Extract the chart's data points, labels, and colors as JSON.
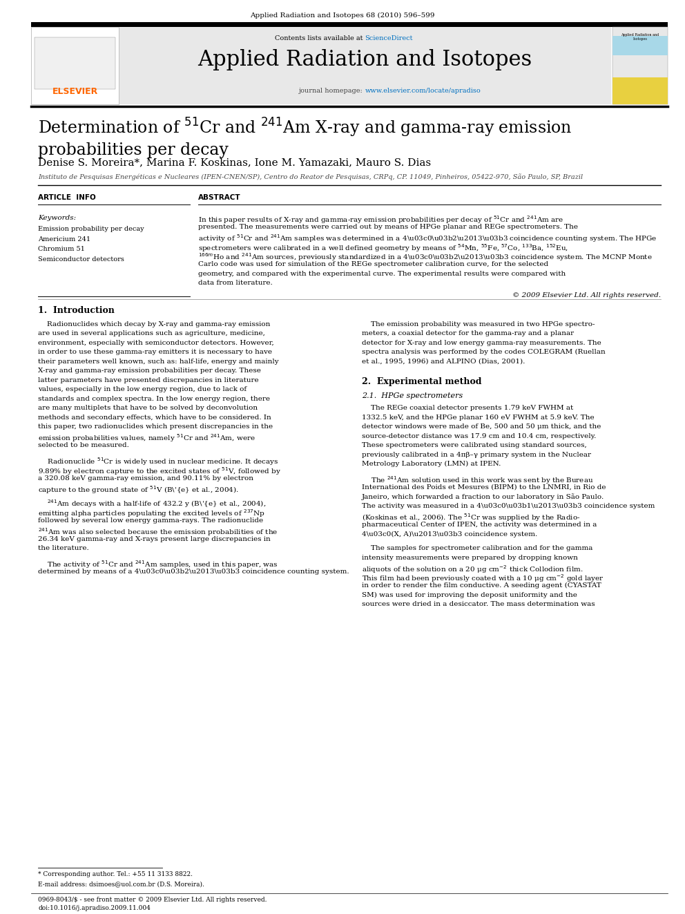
{
  "page_width": 9.92,
  "page_height": 13.23,
  "background_color": "#ffffff",
  "journal_header_text": "Applied Radiation and Isotopes 68 (2010) 596–599",
  "journal_header_fontsize": 7.5,
  "banner_bg": "#e8e8e8",
  "banner_title": "Applied Radiation and Isotopes",
  "banner_title_fontsize": 22,
  "banner_sciencedirect_color": "#0070c0",
  "banner_url_color": "#0070c0",
  "elsevier_color": "#ff6600",
  "article_title_fontsize": 17,
  "authors": "Denise S. Moreira*, Marina F. Koskinas, Ione M. Yamazaki, Mauro S. Dias",
  "authors_fontsize": 11,
  "affiliation": "Instituto de Pesquisas Energéticas e Nucleares (IPEN-CNEN/SP), Centro do Reator de Pesquisas, CRPq, CP. 11049, Pinheiros, 05422-970, São Paulo, SP, Brazil",
  "affiliation_fontsize": 7,
  "section_header_fontsize": 7.5,
  "keywords": [
    "Emission probability per decay",
    "Americium 241",
    "Chromium 51",
    "Semiconductor detectors"
  ],
  "keywords_fontsize": 7.5,
  "copyright_text": "© 2009 Elsevier Ltd. All rights reserved.",
  "body_fontsize": 7.5,
  "intro_section_fontsize": 9,
  "exp_section_fontsize": 9,
  "hpge_section_fontsize": 8,
  "footnote_text1": "* Corresponding author. Tel.: +55 11 3133 8822.",
  "footnote_text2": "E-mail address: dsimoes@uol.com.br (D.S. Moreira).",
  "footnote_bar_text": "0969-8043/$ - see front matter © 2009 Elsevier Ltd. All rights reserved.",
  "footnote_doi": "doi:10.1016/j.apradiso.2009.11.004",
  "footnote_fontsize": 6.5
}
